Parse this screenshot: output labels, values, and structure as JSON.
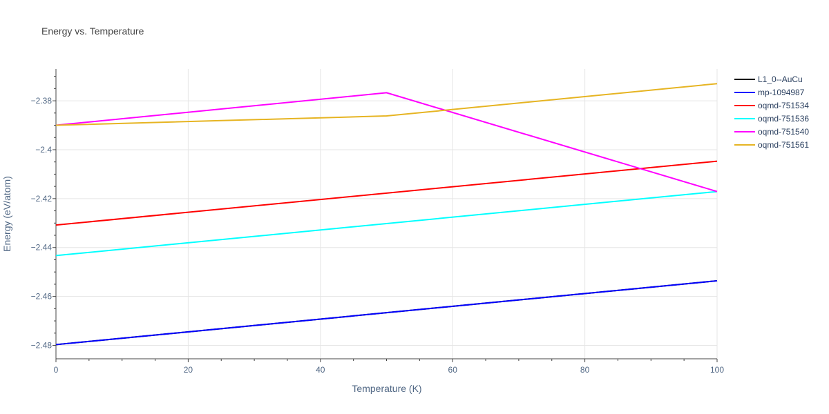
{
  "chart_data": {
    "type": "line",
    "title": "Energy vs. Temperature",
    "xlabel": "Temperature (K)",
    "ylabel": "Energy (eV/atom)",
    "xlim": [
      0,
      100
    ],
    "ylim": [
      -2.4855,
      -2.367
    ],
    "x_ticks": [
      0,
      20,
      40,
      60,
      80,
      100
    ],
    "y_ticks": [
      -2.48,
      -2.46,
      -2.44,
      -2.42,
      -2.4,
      -2.38
    ],
    "y_tick_labels": [
      "−2.48",
      "−2.46",
      "−2.44",
      "−2.42",
      "−2.4",
      "−2.38"
    ],
    "grid": true,
    "legend_position": "right",
    "series": [
      {
        "name": "L1_0--AuCu",
        "color": "#000000",
        "x": [
          0,
          100
        ],
        "y": [
          -2.4797,
          -2.4536
        ]
      },
      {
        "name": "mp-1094987",
        "color": "#0000ff",
        "x": [
          0,
          100
        ],
        "y": [
          -2.4797,
          -2.4536
        ]
      },
      {
        "name": "oqmd-751534",
        "color": "#ff0000",
        "x": [
          0,
          100
        ],
        "y": [
          -2.4308,
          -2.4047
        ]
      },
      {
        "name": "oqmd-751536",
        "color": "#00ffff",
        "x": [
          0,
          100
        ],
        "y": [
          -2.4433,
          -2.4171
        ]
      },
      {
        "name": "oqmd-751540",
        "color": "#ff00ff",
        "x": [
          0,
          50,
          100
        ],
        "y": [
          -2.39,
          -2.3767,
          -2.4171
        ]
      },
      {
        "name": "oqmd-751561",
        "color": "#e6b422",
        "x": [
          0,
          50,
          100
        ],
        "y": [
          -2.39,
          -2.3862,
          -2.373
        ]
      }
    ]
  }
}
